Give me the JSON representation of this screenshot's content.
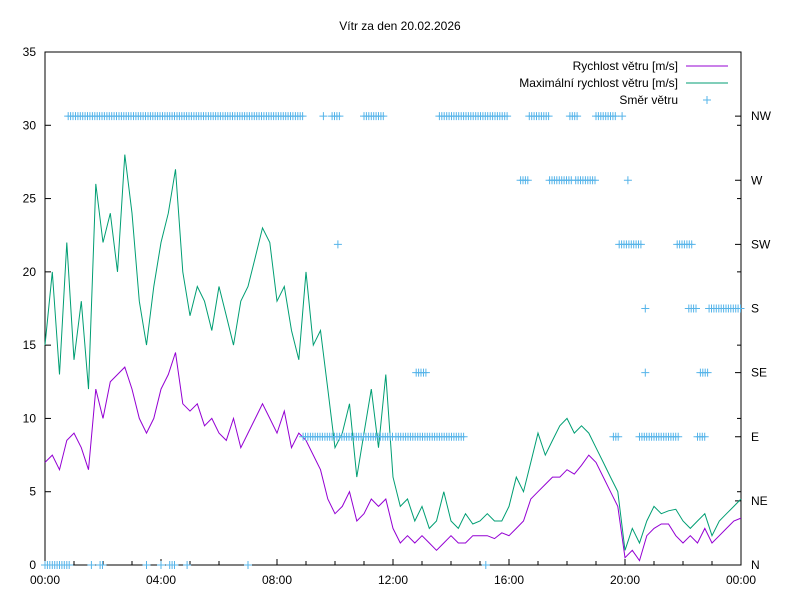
{
  "chart_data": {
    "type": "line",
    "title": "Vítr za den 20.02.2026",
    "xlabel": "",
    "ylabel": "",
    "xlim_hours": [
      0,
      24
    ],
    "ylim": [
      0,
      35
    ],
    "y2lim_degrees": [
      0,
      360
    ],
    "x_ticks": [
      "00:00",
      "04:00",
      "08:00",
      "12:00",
      "16:00",
      "20:00",
      "00:00"
    ],
    "y_ticks": [
      "0",
      "5",
      "10",
      "15",
      "20",
      "25",
      "30",
      "35"
    ],
    "y2_ticks": [
      {
        "label": "N",
        "deg": 0
      },
      {
        "label": "NE",
        "deg": 45
      },
      {
        "label": "E",
        "deg": 90
      },
      {
        "label": "SE",
        "deg": 135
      },
      {
        "label": "S",
        "deg": 180
      },
      {
        "label": "SW",
        "deg": 225
      },
      {
        "label": "W",
        "deg": 270
      },
      {
        "label": "NW",
        "deg": 315
      }
    ],
    "legend_position": "top-right",
    "x_step_hours": 0.25,
    "series": [
      {
        "name": "Rychlost větru [m/s]",
        "color": "#9400d3",
        "values": [
          7,
          7.5,
          6.5,
          8.5,
          9,
          8,
          6.5,
          12,
          10,
          12.5,
          13,
          13.5,
          12,
          10,
          9,
          10,
          12,
          13,
          14.5,
          11,
          10.5,
          11,
          9.5,
          10,
          9,
          8.5,
          10,
          8,
          9,
          10,
          11,
          10,
          9,
          10.5,
          8,
          9,
          8.5,
          7.5,
          6.5,
          4.5,
          3.5,
          4,
          5,
          3,
          3.5,
          4.5,
          4,
          4.5,
          2.5,
          1.5,
          2,
          1.5,
          2,
          1.5,
          1,
          1.5,
          2,
          1.5,
          1.5,
          2,
          2,
          2,
          1.8,
          2.2,
          2,
          2.5,
          3,
          4.5,
          5,
          5.5,
          6,
          6,
          6.5,
          6.2,
          6.8,
          7.5,
          7,
          6,
          5,
          4,
          0.5,
          1,
          0.3,
          2,
          2.5,
          2.8,
          2.8,
          2,
          1.5,
          2,
          1.5,
          2.5,
          1.5,
          2,
          2.5,
          3,
          3.2
        ]
      },
      {
        "name": "Maximální rychlost větru [m/s]",
        "color": "#009e73",
        "values": [
          15,
          20,
          13,
          22,
          14,
          18,
          12,
          26,
          22,
          24,
          20,
          28,
          24,
          18,
          15,
          19,
          22,
          24,
          27,
          20,
          17,
          19,
          18,
          16,
          19,
          17,
          15,
          18,
          19,
          21,
          23,
          22,
          18,
          19,
          16,
          14,
          20,
          15,
          16,
          12,
          8,
          9,
          11,
          6,
          9,
          12,
          8,
          13,
          6,
          4,
          4.5,
          3,
          4,
          2.5,
          3,
          5,
          3,
          2.5,
          3.5,
          2.8,
          3,
          3.5,
          3,
          3,
          4,
          6,
          5,
          7,
          9,
          7.5,
          8.5,
          9.5,
          10,
          9,
          9.5,
          9,
          8,
          7,
          6,
          5,
          1,
          2.5,
          1.5,
          3,
          4,
          3.5,
          3.7,
          3.8,
          3,
          2.5,
          3,
          3.5,
          2,
          3,
          3.5,
          4,
          4.5
        ]
      },
      {
        "name": "Směr větru",
        "color": "#56b4e9",
        "marker": "plus",
        "runs_hours_degrees": [
          [
            0,
            0.9,
            0
          ],
          [
            1.6,
            1.6,
            0
          ],
          [
            1.9,
            2.0,
            0
          ],
          [
            3.5,
            3.5,
            0
          ],
          [
            4.0,
            4.0,
            0
          ],
          [
            4.3,
            4.5,
            0
          ],
          [
            4.9,
            4.9,
            0
          ],
          [
            7.0,
            7.0,
            0
          ],
          [
            15.2,
            15.2,
            0
          ],
          [
            0.8,
            8.9,
            315
          ],
          [
            9.6,
            9.6,
            315
          ],
          [
            9.9,
            10.2,
            315
          ],
          [
            11.0,
            11.7,
            315
          ],
          [
            13.6,
            16.0,
            315
          ],
          [
            16.7,
            17.4,
            315
          ],
          [
            18.1,
            18.4,
            315
          ],
          [
            19.0,
            19.7,
            315
          ],
          [
            19.9,
            19.9,
            315
          ],
          [
            16.4,
            16.7,
            270
          ],
          [
            17.4,
            18.2,
            270
          ],
          [
            18.3,
            19.0,
            270
          ],
          [
            20.1,
            20.1,
            270
          ],
          [
            10.1,
            10.1,
            225
          ],
          [
            19.8,
            20.6,
            225
          ],
          [
            21.8,
            22.3,
            225
          ],
          [
            20.7,
            20.7,
            180
          ],
          [
            22.2,
            22.5,
            180
          ],
          [
            22.9,
            24,
            180
          ],
          [
            12.8,
            13.2,
            135
          ],
          [
            20.7,
            20.7,
            135
          ],
          [
            22.6,
            22.9,
            135
          ],
          [
            8.9,
            12.0,
            90
          ],
          [
            12.1,
            14.5,
            90
          ],
          [
            19.6,
            19.8,
            90
          ],
          [
            20.5,
            21.9,
            90
          ],
          [
            22.5,
            22.8,
            90
          ]
        ]
      }
    ]
  }
}
